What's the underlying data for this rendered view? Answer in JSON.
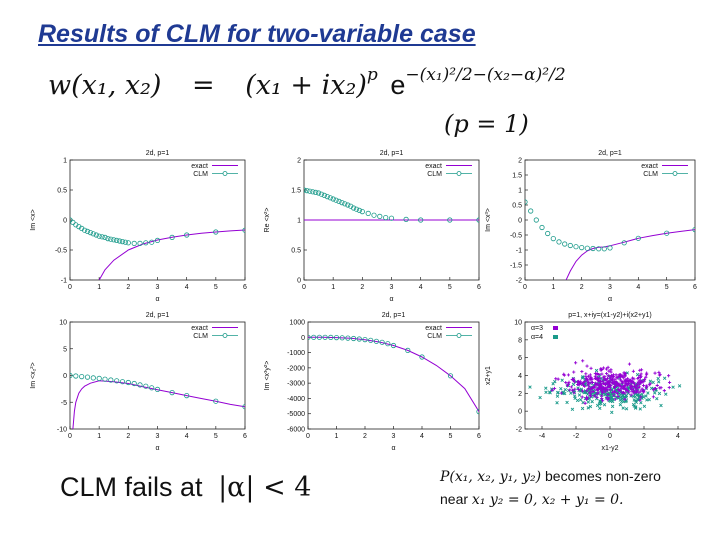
{
  "slide": {
    "title": "Results of CLM for two-variable case",
    "formula_main": {
      "lhs": "w(x₁, x₂)",
      "eq": "=",
      "base": "(x₁ + ix₂)",
      "p": "p",
      "e": "e",
      "exponent": "−(x₁)²/2−(x₂−α)²/2"
    },
    "formula_p": "(p = 1)",
    "bottom_left": {
      "text": "CLM fails at",
      "math": "|α| < 4"
    },
    "bottom_right": {
      "line1_math": "P(x₁, x₂, y₁, y₂)",
      "line1_text": "becomes non-zero",
      "line2_text": "near",
      "line2_math": "x₁   y₂ = 0,  x₂ + y₁ = 0."
    }
  },
  "colors": {
    "exact": "#9400d3",
    "clm": "#1a9a8a",
    "title": "#1f3a93",
    "alpha3": "#9400d3",
    "alpha4": "#1a9a8a"
  },
  "chart_data": [
    {
      "type": "line",
      "title": "2d, p=1",
      "xlabel": "α",
      "ylabel": "Im <x>",
      "xlim": [
        0,
        6
      ],
      "ylim": [
        -1,
        1
      ],
      "xticks": [
        0,
        1,
        2,
        3,
        4,
        5,
        6
      ],
      "yticks": [
        -1,
        -0.5,
        0,
        0.5,
        1
      ],
      "legend": [
        "exact",
        "CLM"
      ],
      "legend_position": "top-right",
      "series": [
        {
          "name": "exact",
          "kind": "line",
          "x": [
            1.0,
            1.2,
            1.5,
            2.0,
            2.5,
            3.0,
            3.5,
            4.0,
            4.5,
            5.0,
            5.5,
            6.0
          ],
          "y": [
            -1.0,
            -0.83,
            -0.67,
            -0.5,
            -0.4,
            -0.333,
            -0.286,
            -0.25,
            -0.222,
            -0.2,
            -0.182,
            -0.167
          ]
        },
        {
          "name": "CLM",
          "kind": "points",
          "x": [
            0.0,
            0.1,
            0.2,
            0.3,
            0.4,
            0.5,
            0.6,
            0.7,
            0.8,
            0.9,
            1.0,
            1.1,
            1.2,
            1.3,
            1.4,
            1.5,
            1.6,
            1.7,
            1.8,
            1.9,
            2.0,
            2.2,
            2.4,
            2.6,
            2.8,
            3.0,
            3.5,
            4.0,
            5.0,
            6.0
          ],
          "y": [
            0.0,
            -0.04,
            -0.08,
            -0.11,
            -0.14,
            -0.17,
            -0.19,
            -0.21,
            -0.23,
            -0.25,
            -0.27,
            -0.28,
            -0.29,
            -0.31,
            -0.32,
            -0.33,
            -0.34,
            -0.35,
            -0.36,
            -0.37,
            -0.38,
            -0.39,
            -0.39,
            -0.38,
            -0.37,
            -0.34,
            -0.29,
            -0.25,
            -0.2,
            -0.17
          ]
        }
      ]
    },
    {
      "type": "line",
      "title": "2d, p=1",
      "xlabel": "α",
      "ylabel": "Re <x²>",
      "xlim": [
        0,
        6
      ],
      "ylim": [
        0,
        2
      ],
      "xticks": [
        0,
        1,
        2,
        3,
        4,
        5,
        6
      ],
      "yticks": [
        0,
        0.5,
        1,
        1.5,
        2
      ],
      "legend": [
        "exact",
        "CLM"
      ],
      "legend_position": "top-right",
      "series": [
        {
          "name": "exact",
          "kind": "line",
          "x": [
            0,
            6
          ],
          "y": [
            1,
            1
          ]
        },
        {
          "name": "CLM",
          "kind": "points",
          "x": [
            0.0,
            0.1,
            0.2,
            0.3,
            0.4,
            0.5,
            0.6,
            0.7,
            0.8,
            0.9,
            1.0,
            1.1,
            1.2,
            1.3,
            1.4,
            1.5,
            1.6,
            1.7,
            1.8,
            1.9,
            2.0,
            2.2,
            2.4,
            2.6,
            2.8,
            3.0,
            3.5,
            4.0,
            5.0,
            6.0
          ],
          "y": [
            1.5,
            1.49,
            1.48,
            1.47,
            1.46,
            1.45,
            1.43,
            1.41,
            1.39,
            1.37,
            1.35,
            1.33,
            1.31,
            1.29,
            1.27,
            1.25,
            1.23,
            1.2,
            1.18,
            1.16,
            1.14,
            1.11,
            1.08,
            1.06,
            1.04,
            1.03,
            1.01,
            1.0,
            1.0,
            1.0
          ]
        }
      ]
    },
    {
      "type": "line",
      "title": "2d, p=1",
      "xlabel": "α",
      "ylabel": "Im <x³>",
      "xlim": [
        0,
        6
      ],
      "ylim": [
        -2,
        2
      ],
      "xticks": [
        0,
        1,
        2,
        3,
        4,
        5,
        6
      ],
      "yticks": [
        -2,
        -1.5,
        -1,
        -0.5,
        0,
        0.5,
        1,
        1.5,
        2
      ],
      "legend": [
        "exact",
        "CLM"
      ],
      "legend_position": "top-right",
      "series": [
        {
          "name": "exact",
          "kind": "line",
          "x": [
            1.45,
            1.6,
            1.8,
            2.0,
            2.2,
            2.4,
            2.6,
            2.8,
            3.0,
            3.5,
            4.0,
            4.5,
            5.0,
            5.5,
            6.0
          ],
          "y": [
            -2.0,
            -1.7,
            -1.38,
            -1.17,
            -1.03,
            -0.95,
            -0.91,
            -0.9,
            -0.86,
            -0.74,
            -0.61,
            -0.52,
            -0.44,
            -0.38,
            -0.32
          ]
        },
        {
          "name": "CLM",
          "kind": "points",
          "x": [
            0.0,
            0.2,
            0.4,
            0.6,
            0.8,
            1.0,
            1.2,
            1.4,
            1.6,
            1.8,
            2.0,
            2.2,
            2.4,
            2.6,
            2.8,
            3.0,
            3.5,
            4.0,
            5.0,
            6.0
          ],
          "y": [
            0.6,
            0.3,
            0.0,
            -0.25,
            -0.45,
            -0.62,
            -0.73,
            -0.8,
            -0.85,
            -0.89,
            -0.92,
            -0.94,
            -0.95,
            -0.96,
            -0.96,
            -0.93,
            -0.76,
            -0.61,
            -0.44,
            -0.32
          ]
        }
      ]
    },
    {
      "type": "line",
      "title": "2d, p=1",
      "xlabel": "α",
      "ylabel": "Im <x₂²>",
      "xlim": [
        0,
        6
      ],
      "ylim": [
        -10,
        10
      ],
      "xticks": [
        0,
        1,
        2,
        3,
        4,
        5,
        6
      ],
      "yticks": [
        -10,
        -5,
        0,
        5,
        10
      ],
      "legend": [
        "exact",
        "CLM"
      ],
      "legend_position": "top-right",
      "series": [
        {
          "name": "exact",
          "kind": "line",
          "x": [
            0.1,
            0.15,
            0.2,
            0.3,
            0.4,
            0.5,
            0.7,
            1.0,
            1.5,
            2.0,
            2.5,
            3.0,
            3.5,
            4.0,
            4.5,
            5.0,
            5.5,
            6.0
          ],
          "y": [
            -10.0,
            -6.7,
            -5.0,
            -3.3,
            -2.5,
            -2.0,
            -1.43,
            -1.0,
            -1.17,
            -1.5,
            -2.1,
            -2.67,
            -3.2,
            -3.75,
            -4.3,
            -4.8,
            -5.4,
            -5.83
          ]
        },
        {
          "name": "CLM",
          "kind": "points",
          "x": [
            0.0,
            0.2,
            0.4,
            0.6,
            0.8,
            1.0,
            1.2,
            1.4,
            1.6,
            1.8,
            2.0,
            2.2,
            2.4,
            2.6,
            2.8,
            3.0,
            3.5,
            4.0,
            5.0,
            6.0
          ],
          "y": [
            0.0,
            -0.1,
            -0.2,
            -0.3,
            -0.45,
            -0.55,
            -0.7,
            -0.85,
            -1.0,
            -1.15,
            -1.3,
            -1.5,
            -1.75,
            -2.0,
            -2.3,
            -2.6,
            -3.2,
            -3.75,
            -4.8,
            -5.83
          ]
        }
      ]
    },
    {
      "type": "line",
      "title": "2d, p=1",
      "xlabel": "α",
      "ylabel": "Im <x³y²>",
      "xlim": [
        0,
        6
      ],
      "ylim": [
        -6000,
        1000
      ],
      "xticks": [
        0,
        1,
        2,
        3,
        4,
        5,
        6
      ],
      "yticks": [
        -6000,
        -5000,
        -4000,
        -3000,
        -2000,
        -1000,
        0,
        1000
      ],
      "legend": [
        "exact",
        "CLM"
      ],
      "legend_position": "top-right",
      "series": [
        {
          "name": "exact",
          "kind": "line",
          "x": [
            0.0,
            0.5,
            1.0,
            1.5,
            2.0,
            2.5,
            3.0,
            3.5,
            4.0,
            4.5,
            5.0,
            5.5,
            6.0
          ],
          "y": [
            0,
            -2,
            -20,
            -65,
            -160,
            -310,
            -540,
            -860,
            -1290,
            -1840,
            -2520,
            -3360,
            -4860
          ]
        },
        {
          "name": "CLM",
          "kind": "points",
          "x": [
            0.0,
            0.2,
            0.4,
            0.6,
            0.8,
            1.0,
            1.2,
            1.4,
            1.6,
            1.8,
            2.0,
            2.2,
            2.4,
            2.6,
            2.8,
            3.0,
            3.5,
            4.0,
            5.0,
            6.0
          ],
          "y": [
            0,
            0,
            -1,
            -4,
            -10,
            -20,
            -33,
            -52,
            -77,
            -110,
            -150,
            -200,
            -260,
            -330,
            -420,
            -540,
            -860,
            -1290,
            -2520,
            -4860
          ]
        }
      ]
    },
    {
      "type": "scatter",
      "title": "p=1, x+iy=(x1-y2)+i(x2+y1)",
      "xlabel": "x1-y2",
      "ylabel": "x2+y1",
      "xlim": [
        -5,
        5
      ],
      "ylim": [
        -2,
        10
      ],
      "xticks": [
        -4,
        -2,
        0,
        2,
        4
      ],
      "yticks": [
        -2,
        0,
        2,
        4,
        6,
        8,
        10
      ],
      "legend": [
        "α=3",
        "α=4"
      ],
      "legend_position": "top-left",
      "series": [
        {
          "name": "α=3",
          "kind": "cloud",
          "center": [
            0.0,
            3.0
          ],
          "spread": [
            1.8,
            1.0
          ],
          "n": 360
        },
        {
          "name": "α=4",
          "kind": "cloud",
          "center": [
            0.0,
            2.0
          ],
          "spread": [
            2.0,
            1.1
          ],
          "n": 300
        }
      ]
    }
  ]
}
